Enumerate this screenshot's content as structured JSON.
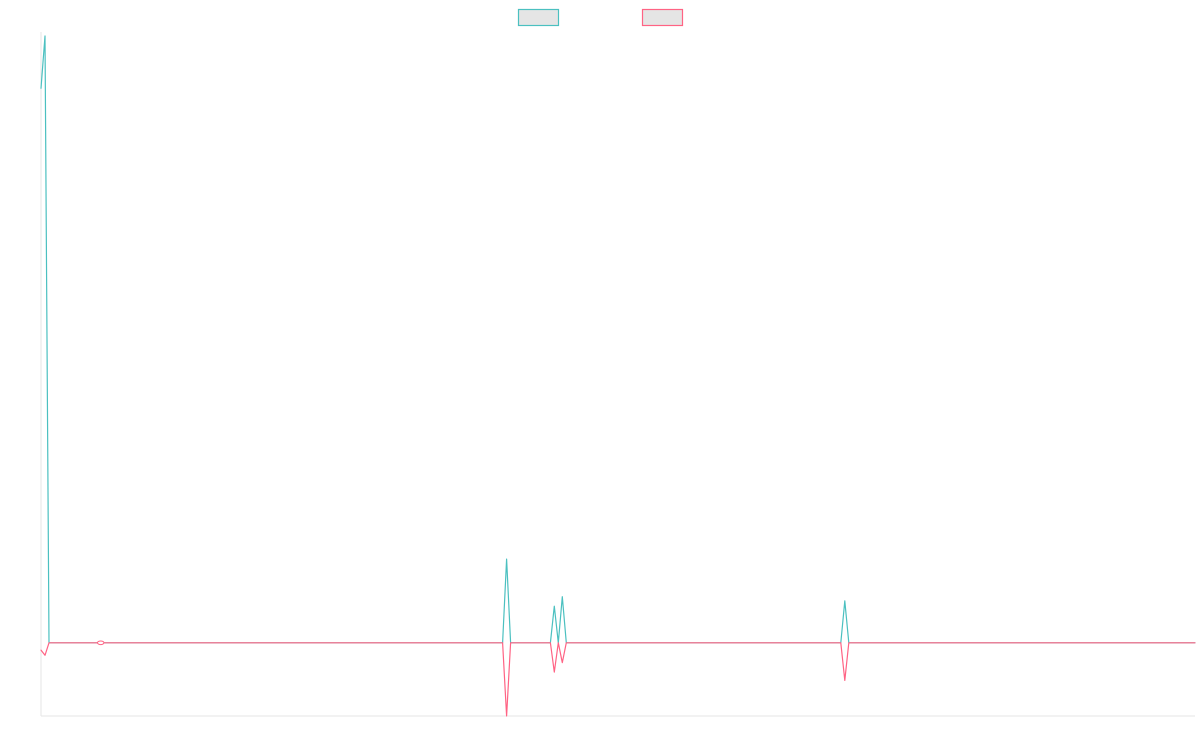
{
  "colors": {
    "series_teal": "#4bc0c0",
    "series_pink": "#ff6384",
    "axis": "#e6e6e6",
    "legend_fill": "#e5e5e5"
  },
  "chart_data": {
    "type": "line",
    "title": "",
    "xlabel": "",
    "ylabel": "",
    "grid": false,
    "legend_position": "top-center",
    "x": [
      0,
      1,
      2,
      15,
      116,
      117,
      118,
      128,
      129,
      130,
      131,
      132,
      133,
      201,
      202,
      203,
      290
    ],
    "ylim": [
      -7,
      58
    ],
    "series": [
      {
        "color": "#4bc0c0",
        "values": [
          53,
          58,
          0,
          0,
          0,
          8,
          0,
          0,
          3.5,
          0,
          4.4,
          0,
          0,
          0,
          4,
          0,
          0
        ]
      },
      {
        "color": "#ff6384",
        "values": [
          -0.7,
          -1.2,
          0,
          0,
          0,
          -7,
          0,
          0,
          -2.8,
          0,
          -1.9,
          0,
          0,
          0,
          -3.6,
          0,
          0
        ]
      }
    ],
    "markers": [
      {
        "series": 1,
        "x": 15,
        "y": 0
      }
    ]
  }
}
